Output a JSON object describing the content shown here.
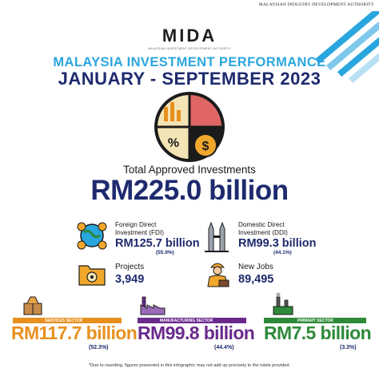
{
  "header": {
    "agency": "MALAYSIAN INDUSTRY DEVELOPMENT AUTHORITY"
  },
  "logo": {
    "word": "MIDA",
    "tagline": "MALAYSIAN INVESTMENT DEVELOPMENT AUTHORITY"
  },
  "title": {
    "line1": "MALAYSIA INVESTMENT PERFORMANCE",
    "line2": "JANUARY - SEPTEMBER 2023"
  },
  "total": {
    "label": "Total Approved Investments",
    "value": "RM225.0 billion"
  },
  "fdi": {
    "label_line1": "Foreign Direct",
    "label_line2": "Investment (FDI)",
    "value": "RM125.7 billion",
    "percent": "(55.9%)"
  },
  "ddi": {
    "label_line1": "Domestic Direct",
    "label_line2": "Investment (DDI)",
    "value": "RM99.3 billion",
    "percent": "(44.1%)"
  },
  "projects": {
    "label": "Projects",
    "value": "3,949"
  },
  "jobs": {
    "label": "New Jobs",
    "value": "89,495"
  },
  "sectors": {
    "services": {
      "label": "SERVICES SECTOR",
      "value": "RM117.7 billion",
      "percent": "(52.3%)",
      "color": "#e8901f"
    },
    "manufacturing": {
      "label": "MANUFACTURING SECTOR",
      "value": "RM99.8 billion",
      "percent": "(44.4%)",
      "color": "#6a2a8c"
    },
    "primary": {
      "label": "PRIMARY SECTOR",
      "value": "RM7.5 billion",
      "percent": "(3.3%)",
      "color": "#2e8a3a"
    }
  },
  "footnote": "*Due to rounding, figures presented in this infographic may not add up precisely to the totals provided.",
  "colors": {
    "navy": "#1e2a6e",
    "cyan": "#2aa6de",
    "orange": "#e8901f",
    "red": "#d9534f"
  },
  "icons": [
    "mida-logo",
    "investment-pie-icon",
    "globe-money-icon",
    "twin-towers-icon",
    "folder-gear-icon",
    "worker-icon",
    "services-box-icon",
    "factory-icon",
    "primary-plant-icon"
  ]
}
